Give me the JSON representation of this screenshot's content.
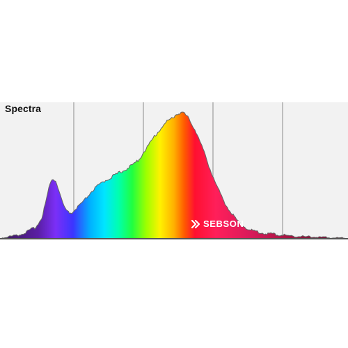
{
  "chart_data": {
    "type": "area",
    "title": "Spectra",
    "xlabel": "",
    "ylabel": "",
    "grid": true,
    "legend": "none",
    "series": [
      {
        "values": [
          [
            0,
            0.0
          ],
          [
            2,
            0.01
          ],
          [
            4,
            0.02
          ],
          [
            6,
            0.03
          ],
          [
            8,
            0.05
          ],
          [
            10,
            0.08
          ],
          [
            11,
            0.11
          ],
          [
            12,
            0.16
          ],
          [
            13,
            0.26
          ],
          [
            14,
            0.38
          ],
          [
            15,
            0.46
          ],
          [
            16,
            0.44
          ],
          [
            17,
            0.36
          ],
          [
            18,
            0.27
          ],
          [
            19,
            0.21
          ],
          [
            20,
            0.19
          ],
          [
            21,
            0.2
          ],
          [
            22,
            0.23
          ],
          [
            24,
            0.28
          ],
          [
            26,
            0.35
          ],
          [
            28,
            0.4
          ],
          [
            30,
            0.44
          ],
          [
            32,
            0.47
          ],
          [
            34,
            0.5
          ],
          [
            36,
            0.53
          ],
          [
            38,
            0.56
          ],
          [
            40,
            0.61
          ],
          [
            42,
            0.69
          ],
          [
            44,
            0.77
          ],
          [
            46,
            0.84
          ],
          [
            48,
            0.9
          ],
          [
            50,
            0.94
          ],
          [
            51,
            0.96
          ],
          [
            52,
            0.97
          ],
          [
            53,
            0.96
          ],
          [
            54,
            0.93
          ],
          [
            56,
            0.84
          ],
          [
            58,
            0.71
          ],
          [
            60,
            0.56
          ],
          [
            62,
            0.42
          ],
          [
            64,
            0.3
          ],
          [
            66,
            0.21
          ],
          [
            68,
            0.14
          ],
          [
            70,
            0.09
          ],
          [
            72,
            0.06
          ],
          [
            75,
            0.04
          ],
          [
            80,
            0.025
          ],
          [
            85,
            0.015
          ],
          [
            90,
            0.01
          ],
          [
            95,
            0.005
          ],
          [
            100,
            0.0
          ]
        ]
      }
    ],
    "xlim": [
      0,
      100
    ],
    "ylim": [
      0,
      1
    ],
    "gridlines_x": [
      20,
      40,
      60,
      80
    ],
    "colors": {
      "background": "#f2f2f2",
      "grid": "#8a8a8a",
      "outline": "#666666",
      "baseline": "#555555"
    },
    "spectrum_stops": [
      {
        "at": 0.0,
        "color": "#3a1a55"
      },
      {
        "at": 0.11,
        "color": "#5a1fa5"
      },
      {
        "at": 0.16,
        "color": "#7b2ff7"
      },
      {
        "at": 0.21,
        "color": "#3b35ff"
      },
      {
        "at": 0.26,
        "color": "#00b2ff"
      },
      {
        "at": 0.3,
        "color": "#00e5ff"
      },
      {
        "at": 0.34,
        "color": "#00ffb0"
      },
      {
        "at": 0.38,
        "color": "#20ff40"
      },
      {
        "at": 0.42,
        "color": "#9dff00"
      },
      {
        "at": 0.46,
        "color": "#fff200"
      },
      {
        "at": 0.5,
        "color": "#ffb000"
      },
      {
        "at": 0.53,
        "color": "#ff5a00"
      },
      {
        "at": 0.56,
        "color": "#ff1030"
      },
      {
        "at": 0.62,
        "color": "#ff1f5a"
      },
      {
        "at": 0.72,
        "color": "#d81a5a"
      },
      {
        "at": 0.84,
        "color": "#a01640"
      },
      {
        "at": 1.0,
        "color": "#5a1030"
      }
    ]
  },
  "brand": {
    "text": "SEBSON",
    "icon": "double-chevron-icon",
    "color": "#ffffff"
  }
}
